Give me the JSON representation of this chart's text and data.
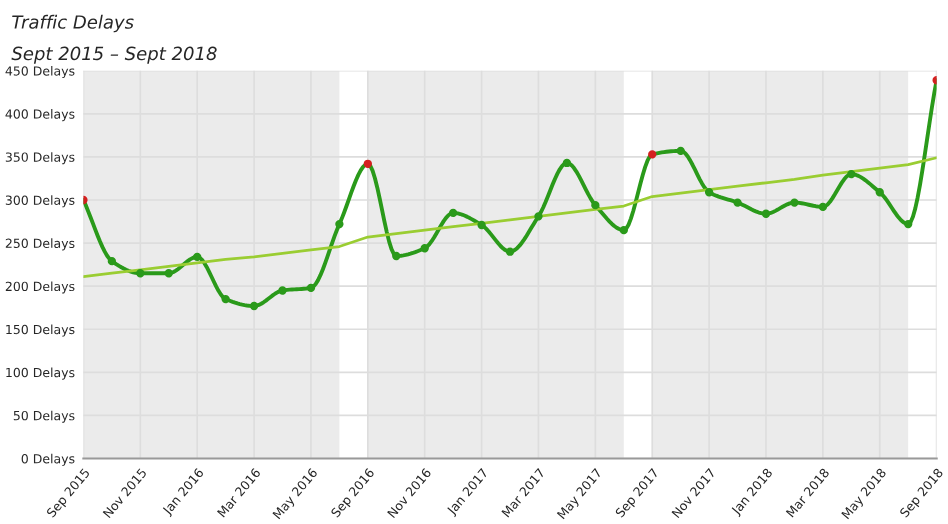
{
  "chart_data": {
    "type": "line",
    "title": "Traffic Delays",
    "subtitle": "Sept 2015 – Sept 2018",
    "categories": [
      "Sep 2015",
      null,
      "Nov 2015",
      null,
      "Jan 2016",
      null,
      "Mar 2016",
      null,
      "May 2016",
      null,
      "Sep 2016",
      null,
      "Nov 2016",
      null,
      "Jan 2017",
      null,
      "Mar 2017",
      null,
      "May 2017",
      null,
      "Sep 2017",
      null,
      "Nov 2017",
      null,
      "Jan 2018",
      null,
      "Mar 2018",
      null,
      "May 2018",
      null,
      "Sep 2018"
    ],
    "series": [
      {
        "color": "#2a9a1a",
        "values": [
          300,
          229,
          215,
          215,
          234,
          185,
          177,
          195,
          198,
          272,
          342,
          235,
          244,
          285,
          271,
          240,
          281,
          343,
          294,
          265,
          353,
          357,
          309,
          297,
          284,
          297,
          292,
          330,
          309,
          272,
          439
        ],
        "colors": [
          "#d42020",
          "#2a9a1a",
          "#2a9a1a",
          "#2a9a1a",
          "#2a9a1a",
          "#2a9a1a",
          "#2a9a1a",
          "#2a9a1a",
          "#2a9a1a",
          "#2a9a1a",
          "#d42020",
          "#2a9a1a",
          "#2a9a1a",
          "#2a9a1a",
          "#2a9a1a",
          "#2a9a1a",
          "#2a9a1a",
          "#2a9a1a",
          "#2a9a1a",
          "#2a9a1a",
          "#d42020",
          "#2a9a1a",
          "#2a9a1a",
          "#2a9a1a",
          "#2a9a1a",
          "#2a9a1a",
          "#2a9a1a",
          "#2a9a1a",
          "#2a9a1a",
          "#2a9a1a",
          "#d42020"
        ],
        "marker": "circle"
      },
      {
        "color": "#9acd32",
        "values": [
          211,
          215,
          219,
          223,
          227,
          231,
          234,
          238,
          242,
          246,
          257,
          261,
          265,
          269,
          273,
          277,
          281,
          285,
          289,
          293,
          304,
          308,
          312,
          316,
          320,
          324,
          329,
          333,
          337,
          341,
          349
        ],
        "marker": "none"
      }
    ],
    "ylim": [
      0,
      450
    ],
    "yticks": [
      {
        "value": 0,
        "label": "0 Delays"
      },
      {
        "value": 50,
        "label": "50 Delays"
      },
      {
        "value": 100,
        "label": "100 Delays"
      },
      {
        "value": 150,
        "label": "150 Delays"
      },
      {
        "value": 200,
        "label": "200 Delays"
      },
      {
        "value": 250,
        "label": "250 Delays"
      },
      {
        "value": 300,
        "label": "300 Delays"
      },
      {
        "value": 350,
        "label": "350 Delays"
      },
      {
        "value": 400,
        "label": "400 Delays"
      },
      {
        "value": 450,
        "label": "450 Delays"
      }
    ],
    "grid": true,
    "legend": false
  }
}
